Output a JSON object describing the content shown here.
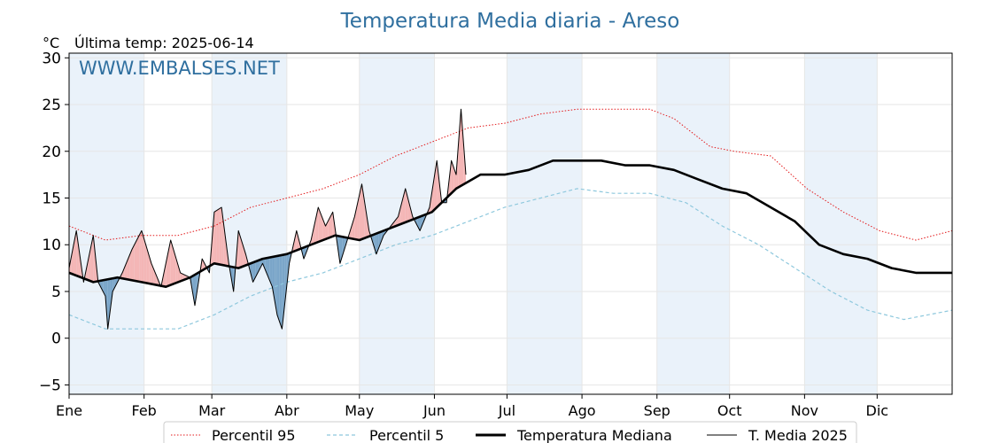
{
  "chart_data": {
    "type": "line",
    "title": "Temperatura Media diaria - Areso",
    "unit_label": "°C",
    "last_temp_label": "Última temp: 2025-06-14",
    "watermark": "WWW.EMBALSES.NET",
    "ylim": [
      -6,
      30.5
    ],
    "yticks": [
      -5,
      0,
      5,
      10,
      15,
      20,
      25,
      30
    ],
    "xlim": [
      0,
      365
    ],
    "months": [
      "Ene",
      "Feb",
      "Mar",
      "Abr",
      "May",
      "Jun",
      "Jul",
      "Ago",
      "Sep",
      "Oct",
      "Nov",
      "Dic"
    ],
    "month_starts": [
      0,
      31,
      59,
      90,
      120,
      151,
      181,
      212,
      243,
      273,
      304,
      334
    ],
    "grid": true,
    "legend_position": "bottom",
    "colors": {
      "p95": "#e31a1c",
      "p5": "#8ec8dd",
      "median": "#000000",
      "current": "#000000",
      "above_fill": "#f4b6b6",
      "below_fill": "#7ba6c9",
      "band": "#eaf2fa",
      "title": "#2f6f9f"
    },
    "series": [
      {
        "name": "Percentil 95",
        "style": "dotted-red",
        "points": [
          [
            0,
            12.0
          ],
          [
            15,
            10.5
          ],
          [
            30,
            11.0
          ],
          [
            45,
            11.0
          ],
          [
            60,
            12.0
          ],
          [
            75,
            14.0
          ],
          [
            90,
            15.0
          ],
          [
            105,
            16.0
          ],
          [
            120,
            17.5
          ],
          [
            135,
            19.5
          ],
          [
            150,
            21.0
          ],
          [
            165,
            22.5
          ],
          [
            180,
            23.0
          ],
          [
            195,
            24.0
          ],
          [
            210,
            24.5
          ],
          [
            225,
            24.5
          ],
          [
            240,
            24.5
          ],
          [
            250,
            23.5
          ],
          [
            265,
            20.5
          ],
          [
            275,
            20.0
          ],
          [
            290,
            19.5
          ],
          [
            305,
            16.0
          ],
          [
            320,
            13.5
          ],
          [
            335,
            11.5
          ],
          [
            350,
            10.5
          ],
          [
            365,
            11.5
          ]
        ]
      },
      {
        "name": "Percentil 5",
        "style": "dashed-lightblue",
        "points": [
          [
            0,
            2.5
          ],
          [
            15,
            1.0
          ],
          [
            30,
            1.0
          ],
          [
            45,
            1.0
          ],
          [
            60,
            2.5
          ],
          [
            75,
            4.5
          ],
          [
            90,
            6.0
          ],
          [
            105,
            7.0
          ],
          [
            120,
            8.5
          ],
          [
            135,
            10.0
          ],
          [
            150,
            11.0
          ],
          [
            165,
            12.5
          ],
          [
            180,
            14.0
          ],
          [
            195,
            15.0
          ],
          [
            210,
            16.0
          ],
          [
            225,
            15.5
          ],
          [
            240,
            15.5
          ],
          [
            255,
            14.5
          ],
          [
            270,
            12.0
          ],
          [
            285,
            10.0
          ],
          [
            300,
            7.5
          ],
          [
            315,
            5.0
          ],
          [
            330,
            3.0
          ],
          [
            345,
            2.0
          ],
          [
            365,
            3.0
          ]
        ]
      },
      {
        "name": "Temperatura Mediana",
        "style": "thick-black",
        "points": [
          [
            0,
            7.0
          ],
          [
            10,
            6.0
          ],
          [
            20,
            6.5
          ],
          [
            30,
            6.0
          ],
          [
            40,
            5.5
          ],
          [
            50,
            6.5
          ],
          [
            60,
            8.0
          ],
          [
            70,
            7.5
          ],
          [
            80,
            8.5
          ],
          [
            90,
            9.0
          ],
          [
            100,
            10.0
          ],
          [
            110,
            11.0
          ],
          [
            120,
            10.5
          ],
          [
            130,
            11.5
          ],
          [
            140,
            12.5
          ],
          [
            150,
            13.5
          ],
          [
            160,
            16.0
          ],
          [
            170,
            17.5
          ],
          [
            180,
            17.5
          ],
          [
            190,
            18.0
          ],
          [
            200,
            19.0
          ],
          [
            210,
            19.0
          ],
          [
            220,
            19.0
          ],
          [
            230,
            18.5
          ],
          [
            240,
            18.5
          ],
          [
            250,
            18.0
          ],
          [
            260,
            17.0
          ],
          [
            270,
            16.0
          ],
          [
            280,
            15.5
          ],
          [
            290,
            14.0
          ],
          [
            300,
            12.5
          ],
          [
            310,
            10.0
          ],
          [
            320,
            9.0
          ],
          [
            330,
            8.5
          ],
          [
            340,
            7.5
          ],
          [
            350,
            7.0
          ],
          [
            365,
            7.0
          ]
        ]
      },
      {
        "name": "T. Media 2025",
        "style": "thin-black",
        "points": [
          [
            0,
            7.5
          ],
          [
            3,
            11.5
          ],
          [
            6,
            6.0
          ],
          [
            10,
            11.0
          ],
          [
            12,
            6.0
          ],
          [
            15,
            4.5
          ],
          [
            16,
            1.0
          ],
          [
            18,
            5.0
          ],
          [
            22,
            7.0
          ],
          [
            26,
            9.5
          ],
          [
            30,
            11.5
          ],
          [
            34,
            8.0
          ],
          [
            38,
            5.5
          ],
          [
            42,
            10.5
          ],
          [
            46,
            7.0
          ],
          [
            50,
            6.5
          ],
          [
            52,
            3.5
          ],
          [
            55,
            8.5
          ],
          [
            58,
            7.0
          ],
          [
            60,
            13.5
          ],
          [
            63,
            14.0
          ],
          [
            66,
            8.0
          ],
          [
            68,
            5.0
          ],
          [
            70,
            11.5
          ],
          [
            73,
            9.0
          ],
          [
            76,
            6.0
          ],
          [
            80,
            8.0
          ],
          [
            84,
            5.5
          ],
          [
            86,
            2.5
          ],
          [
            88,
            1.0
          ],
          [
            91,
            8.0
          ],
          [
            94,
            11.5
          ],
          [
            97,
            8.5
          ],
          [
            100,
            10.5
          ],
          [
            103,
            14.0
          ],
          [
            106,
            12.0
          ],
          [
            109,
            13.5
          ],
          [
            112,
            8.0
          ],
          [
            115,
            10.5
          ],
          [
            118,
            13.0
          ],
          [
            121,
            16.5
          ],
          [
            124,
            11.5
          ],
          [
            127,
            9.0
          ],
          [
            130,
            11.0
          ],
          [
            133,
            12.0
          ],
          [
            136,
            13.0
          ],
          [
            139,
            16.0
          ],
          [
            142,
            13.0
          ],
          [
            145,
            11.5
          ],
          [
            149,
            14.0
          ],
          [
            152,
            19.0
          ],
          [
            154,
            14.5
          ],
          [
            156,
            14.5
          ],
          [
            158,
            19.0
          ],
          [
            160,
            17.5
          ],
          [
            162,
            24.5
          ],
          [
            164,
            17.5
          ]
        ]
      }
    ]
  },
  "legend": {
    "items": [
      {
        "label": "Percentil 95"
      },
      {
        "label": "Percentil 5"
      },
      {
        "label": "Temperatura Mediana"
      },
      {
        "label": "T. Media 2025"
      }
    ]
  }
}
